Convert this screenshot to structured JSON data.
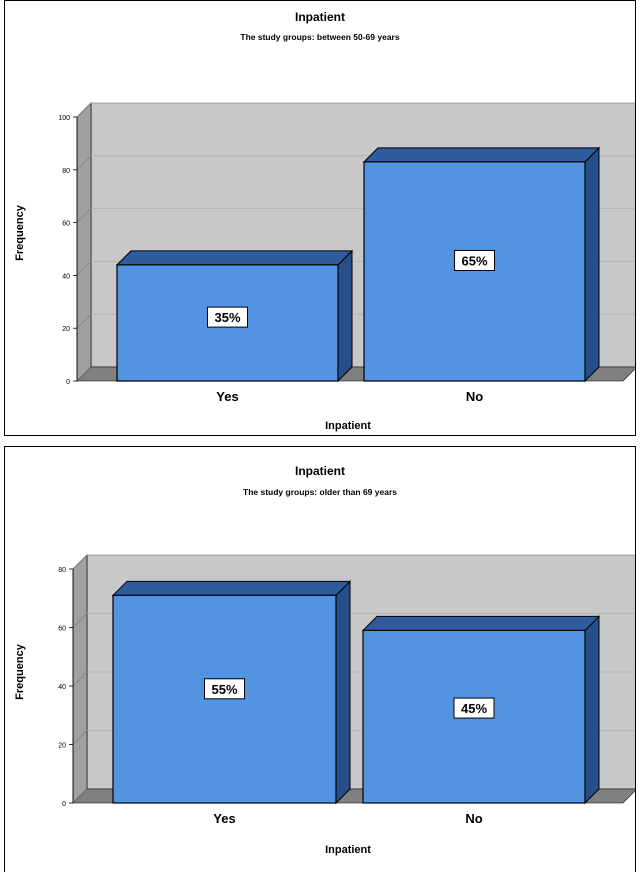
{
  "chart_data": [
    {
      "type": "bar",
      "title": "Inpatient",
      "subtitle": "The study groups: between 50-69 years",
      "xlabel": "Inpatient",
      "ylabel": "Frequency",
      "categories": [
        "Yes",
        "No"
      ],
      "values": [
        44,
        83
      ],
      "data_labels": [
        "35%",
        "65%"
      ],
      "ylim": [
        0,
        100
      ],
      "yticks": [
        0,
        20,
        40,
        60,
        80,
        100
      ],
      "grid": true,
      "style": "3d"
    },
    {
      "type": "bar",
      "title": "Inpatient",
      "subtitle": "The study groups: older than 69 years",
      "xlabel": "Inpatient",
      "ylabel": "Frequency",
      "categories": [
        "Yes",
        "No"
      ],
      "values": [
        71,
        59
      ],
      "data_labels": [
        "55%",
        "45%"
      ],
      "ylim": [
        0,
        80
      ],
      "yticks": [
        0,
        20,
        40,
        60,
        80
      ],
      "grid": true,
      "style": "3d"
    }
  ],
  "colors": {
    "bar_front": "#5294E2",
    "bar_top": "#2E5C9E",
    "bar_side": "#264F8A",
    "plot_back": "#C8C8C8",
    "plot_floor": "#808080",
    "plot_left_wall": "#A0A0A0"
  }
}
